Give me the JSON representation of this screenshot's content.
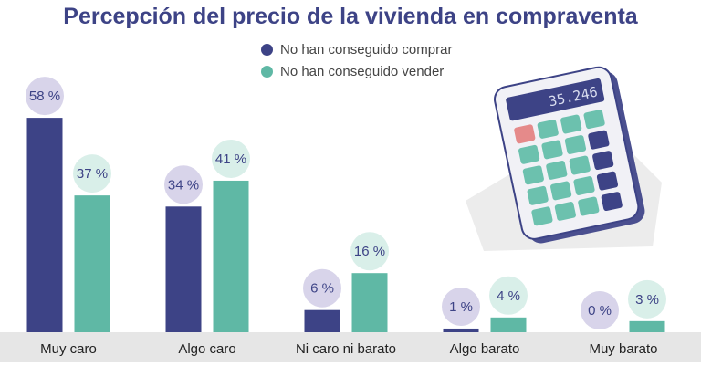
{
  "chart_data": {
    "type": "bar",
    "title": "Percepción del precio de la vivienda en compraventa",
    "categories": [
      "Muy caro",
      "Algo caro",
      "Ni caro ni barato",
      "Algo barato",
      "Muy barato"
    ],
    "series": [
      {
        "name": "No han conseguido comprar",
        "values": [
          58,
          34,
          6,
          1,
          0
        ],
        "labels": [
          "58 %",
          "34 %",
          "6 %",
          "1 %",
          "0 %"
        ],
        "color": "#3d4386"
      },
      {
        "name": "No han conseguido vender",
        "values": [
          37,
          41,
          16,
          4,
          3
        ],
        "labels": [
          "37 %",
          "41 %",
          "16 %",
          "4 %",
          "3 %"
        ],
        "color": "#5fb8a5"
      }
    ],
    "ylim": [
      0,
      60
    ],
    "xlabel": "",
    "ylabel": ""
  },
  "calculator": {
    "display": "35.246"
  },
  "colors": {
    "bubble": "#d8d4ea",
    "bubble_alt": "#d9efe9",
    "axis_band": "#e6e6e6"
  }
}
